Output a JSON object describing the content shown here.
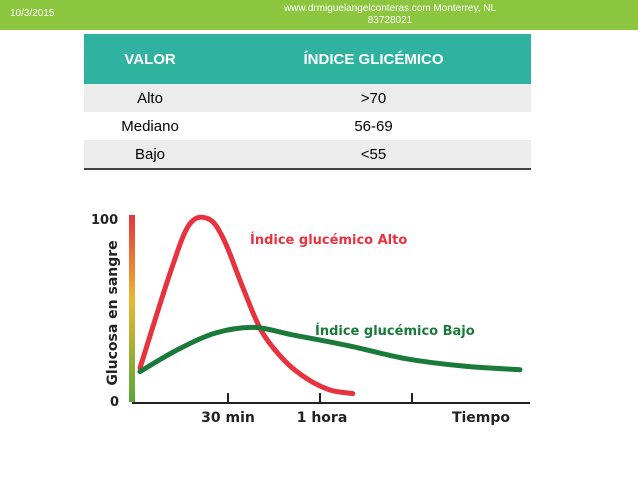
{
  "header": {
    "date": "10/3/2015",
    "site_line1": "www.drmiguelangelconteras.com Monterrey, NL",
    "site_line2": "83728021"
  },
  "table": {
    "columns": [
      "VALOR",
      "ÍNDICE GLICÉMICO"
    ],
    "rows": [
      [
        "Alto",
        ">70"
      ],
      [
        "Mediano",
        "56-69"
      ],
      [
        "Bajo",
        "<55"
      ]
    ]
  },
  "chart_data": {
    "type": "line",
    "ylabel": "Glucosa en sangre",
    "xlabel": "Tiempo",
    "ylim": [
      0,
      100
    ],
    "yticks": [
      "100",
      "0"
    ],
    "xticks": [
      "30 min",
      "1 hora"
    ],
    "grid": false,
    "series": [
      {
        "name": "Índice glucémico Alto",
        "color": "#e8323f",
        "x": [
          0.0,
          0.08,
          0.13,
          0.18,
          0.22,
          0.27,
          0.32,
          0.38,
          0.44,
          0.5,
          0.56
        ],
        "y": [
          18,
          70,
          96,
          99,
          88,
          62,
          38,
          22,
          12,
          6,
          4
        ]
      },
      {
        "name": "Índice glucémico Bajo",
        "color": "#1a7a3a",
        "x": [
          0.0,
          0.1,
          0.2,
          0.3,
          0.4,
          0.55,
          0.7,
          0.85,
          1.0
        ],
        "y": [
          16,
          28,
          37,
          40,
          36,
          30,
          23,
          19,
          17
        ]
      }
    ]
  }
}
